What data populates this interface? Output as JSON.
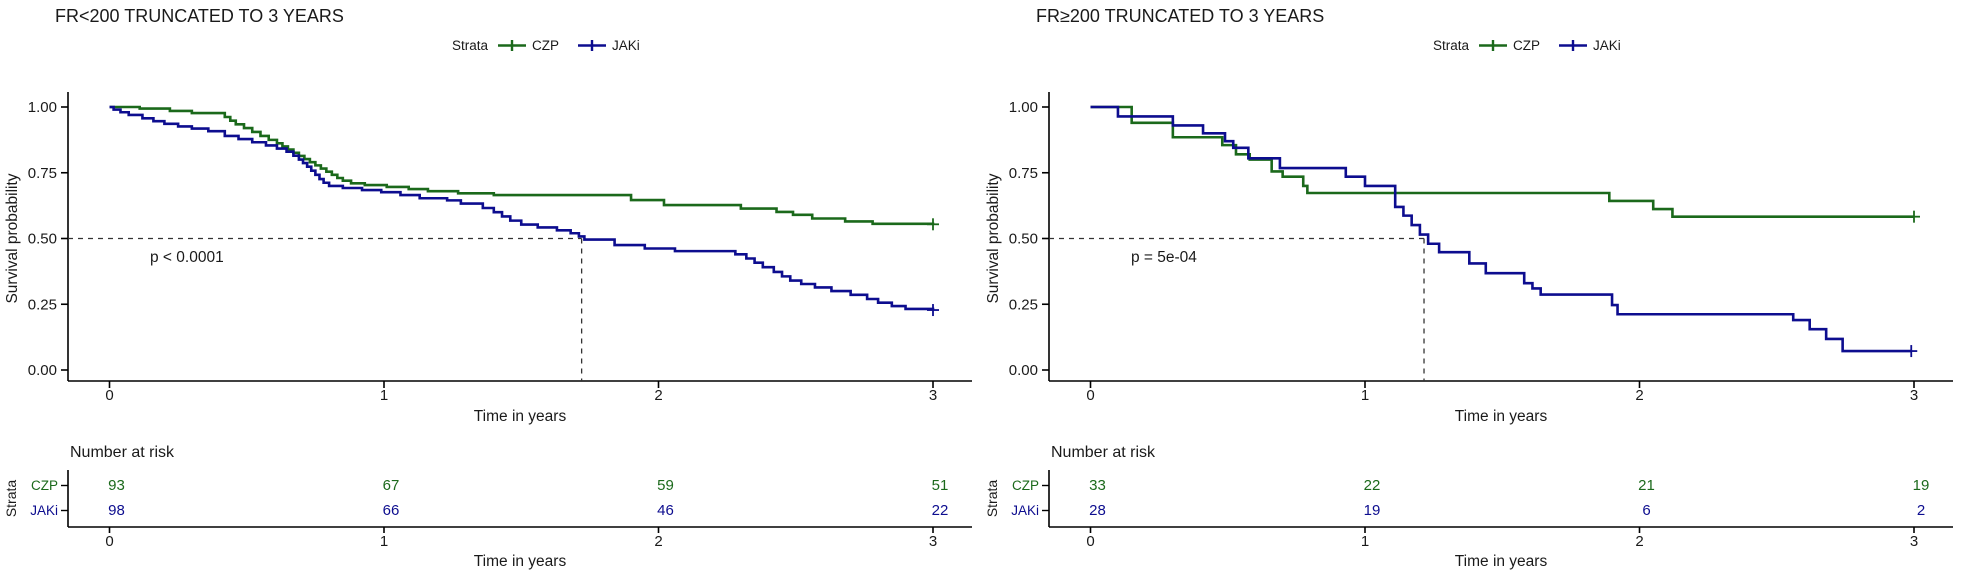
{
  "figure_type": "kaplan_meier_survival_pair",
  "colors": {
    "czp": "#1b691b",
    "jaki": "#0d0d8f",
    "axis": "#000000",
    "dashed": "#333333",
    "text": "#1a1a1a"
  },
  "chart_data": [
    {
      "type": "line",
      "subtype": "kaplan_meier_step",
      "title": "FR<200 TRUNCATED TO 3 YEARS",
      "legend": {
        "label": "Strata",
        "position": "top",
        "items": [
          {
            "name": "CZP",
            "color": "#1b691b"
          },
          {
            "name": "JAKi",
            "color": "#0d0d8f"
          }
        ]
      },
      "xlabel": "Time in years",
      "ylabel": "Survival probability",
      "xlim": [
        0,
        3
      ],
      "ylim": [
        0,
        1
      ],
      "grid": false,
      "xtick_vals": [
        0,
        1,
        2,
        3
      ],
      "xtick_labels": [
        "0",
        "1",
        "2",
        "3"
      ],
      "ytick_vals": [
        0,
        0.25,
        0.5,
        0.75,
        1
      ],
      "ytick_labels": [
        "0.00",
        "0.25",
        "0.50",
        "0.75",
        "1.00"
      ],
      "p_value": "p < 0.0001",
      "median_line": {
        "surv": 0.5,
        "time": 1.72
      },
      "series": [
        {
          "name": "CZP",
          "color": "#1b691b",
          "end": 3.0,
          "censors": [
            [
              3.0,
              0.554
            ]
          ],
          "points": [
            [
              0,
              1.0
            ],
            [
              0.11,
              0.994
            ],
            [
              0.22,
              0.985
            ],
            [
              0.3,
              0.977
            ],
            [
              0.42,
              0.962
            ],
            [
              0.44,
              0.948
            ],
            [
              0.46,
              0.934
            ],
            [
              0.49,
              0.92
            ],
            [
              0.52,
              0.905
            ],
            [
              0.55,
              0.89
            ],
            [
              0.58,
              0.875
            ],
            [
              0.61,
              0.862
            ],
            [
              0.63,
              0.85
            ],
            [
              0.65,
              0.838
            ],
            [
              0.67,
              0.826
            ],
            [
              0.69,
              0.814
            ],
            [
              0.71,
              0.802
            ],
            [
              0.73,
              0.79
            ],
            [
              0.75,
              0.778
            ],
            [
              0.77,
              0.766
            ],
            [
              0.79,
              0.754
            ],
            [
              0.81,
              0.742
            ],
            [
              0.83,
              0.73
            ],
            [
              0.85,
              0.72
            ],
            [
              0.88,
              0.71
            ],
            [
              0.93,
              0.703
            ],
            [
              1.01,
              0.696
            ],
            [
              1.09,
              0.688
            ],
            [
              1.16,
              0.68
            ],
            [
              1.27,
              0.672
            ],
            [
              1.4,
              0.665
            ],
            [
              1.9,
              0.646
            ],
            [
              2.02,
              0.627
            ],
            [
              2.3,
              0.614
            ],
            [
              2.43,
              0.601
            ],
            [
              2.49,
              0.59
            ],
            [
              2.56,
              0.576
            ],
            [
              2.68,
              0.565
            ],
            [
              2.78,
              0.556
            ],
            [
              3.0,
              0.554
            ]
          ]
        },
        {
          "name": "JAKi",
          "color": "#0d0d8f",
          "end": 3.0,
          "censors": [
            [
              3.0,
              0.228
            ]
          ],
          "points": [
            [
              0,
              1.0
            ],
            [
              0.015,
              0.99
            ],
            [
              0.04,
              0.98
            ],
            [
              0.07,
              0.97
            ],
            [
              0.12,
              0.957
            ],
            [
              0.16,
              0.946
            ],
            [
              0.2,
              0.936
            ],
            [
              0.25,
              0.926
            ],
            [
              0.3,
              0.918
            ],
            [
              0.36,
              0.908
            ],
            [
              0.42,
              0.89
            ],
            [
              0.47,
              0.878
            ],
            [
              0.52,
              0.866
            ],
            [
              0.57,
              0.854
            ],
            [
              0.61,
              0.842
            ],
            [
              0.645,
              0.83
            ],
            [
              0.67,
              0.815
            ],
            [
              0.69,
              0.8
            ],
            [
              0.705,
              0.787
            ],
            [
              0.72,
              0.773
            ],
            [
              0.735,
              0.758
            ],
            [
              0.75,
              0.742
            ],
            [
              0.765,
              0.726
            ],
            [
              0.78,
              0.712
            ],
            [
              0.8,
              0.7
            ],
            [
              0.85,
              0.692
            ],
            [
              0.92,
              0.684
            ],
            [
              0.99,
              0.676
            ],
            [
              1.06,
              0.665
            ],
            [
              1.13,
              0.653
            ],
            [
              1.23,
              0.645
            ],
            [
              1.28,
              0.633
            ],
            [
              1.36,
              0.616
            ],
            [
              1.4,
              0.6
            ],
            [
              1.43,
              0.584
            ],
            [
              1.46,
              0.568
            ],
            [
              1.5,
              0.553
            ],
            [
              1.56,
              0.542
            ],
            [
              1.63,
              0.531
            ],
            [
              1.68,
              0.52
            ],
            [
              1.71,
              0.508
            ],
            [
              1.73,
              0.496
            ],
            [
              1.84,
              0.475
            ],
            [
              1.95,
              0.462
            ],
            [
              2.06,
              0.452
            ],
            [
              2.28,
              0.44
            ],
            [
              2.32,
              0.424
            ],
            [
              2.35,
              0.408
            ],
            [
              2.38,
              0.391
            ],
            [
              2.42,
              0.373
            ],
            [
              2.45,
              0.356
            ],
            [
              2.48,
              0.34
            ],
            [
              2.52,
              0.327
            ],
            [
              2.57,
              0.314
            ],
            [
              2.63,
              0.3
            ],
            [
              2.7,
              0.286
            ],
            [
              2.76,
              0.27
            ],
            [
              2.8,
              0.256
            ],
            [
              2.85,
              0.243
            ],
            [
              2.9,
              0.232
            ],
            [
              3.0,
              0.228
            ]
          ]
        }
      ],
      "risk_table": {
        "title": "Number at risk",
        "strata_axis_label": "Strata",
        "xlabel": "Time in years",
        "xtick_labels": [
          "0",
          "1",
          "2",
          "3"
        ],
        "rows": [
          {
            "name": "CZP",
            "color": "#1b691b",
            "values": [
              "93",
              "67",
              "59",
              "51"
            ]
          },
          {
            "name": "JAKi",
            "color": "#0d0d8f",
            "values": [
              "98",
              "66",
              "46",
              "22"
            ]
          }
        ]
      }
    },
    {
      "type": "line",
      "subtype": "kaplan_meier_step",
      "title": "FR≥200 TRUNCATED TO 3 YEARS",
      "legend": {
        "label": "Strata",
        "position": "top",
        "items": [
          {
            "name": "CZP",
            "color": "#1b691b"
          },
          {
            "name": "JAKi",
            "color": "#0d0d8f"
          }
        ]
      },
      "xlabel": "Time in years",
      "ylabel": "Survival probability",
      "xlim": [
        0,
        3
      ],
      "ylim": [
        0,
        1
      ],
      "grid": false,
      "xtick_vals": [
        0,
        1,
        2,
        3
      ],
      "xtick_labels": [
        "0",
        "1",
        "2",
        "3"
      ],
      "ytick_vals": [
        0,
        0.25,
        0.5,
        0.75,
        1
      ],
      "ytick_labels": [
        "0.00",
        "0.25",
        "0.50",
        "0.75",
        "1.00"
      ],
      "p_value": "p = 5e-04",
      "median_line": {
        "surv": 0.5,
        "time": 1.215
      },
      "series": [
        {
          "name": "CZP",
          "color": "#1b691b",
          "end": 3.0,
          "censors": [
            [
              3.0,
              0.583
            ]
          ],
          "points": [
            [
              0,
              1.0
            ],
            [
              0.15,
              0.94
            ],
            [
              0.3,
              0.885
            ],
            [
              0.48,
              0.855
            ],
            [
              0.53,
              0.82
            ],
            [
              0.58,
              0.8
            ],
            [
              0.66,
              0.755
            ],
            [
              0.7,
              0.735
            ],
            [
              0.775,
              0.7
            ],
            [
              0.79,
              0.673
            ],
            [
              1.89,
              0.643
            ],
            [
              2.05,
              0.612
            ],
            [
              2.12,
              0.583
            ],
            [
              3.0,
              0.583
            ]
          ]
        },
        {
          "name": "JAKi",
          "color": "#0d0d8f",
          "end": 2.99,
          "censors": [
            [
              2.99,
              0.072
            ]
          ],
          "points": [
            [
              0,
              1.0
            ],
            [
              0.1,
              0.964
            ],
            [
              0.3,
              0.93
            ],
            [
              0.41,
              0.9
            ],
            [
              0.49,
              0.87
            ],
            [
              0.52,
              0.845
            ],
            [
              0.575,
              0.805
            ],
            [
              0.69,
              0.768
            ],
            [
              0.93,
              0.735
            ],
            [
              1.0,
              0.7
            ],
            [
              1.11,
              0.62
            ],
            [
              1.14,
              0.587
            ],
            [
              1.17,
              0.551
            ],
            [
              1.2,
              0.515
            ],
            [
              1.23,
              0.48
            ],
            [
              1.27,
              0.448
            ],
            [
              1.38,
              0.405
            ],
            [
              1.44,
              0.368
            ],
            [
              1.58,
              0.33
            ],
            [
              1.61,
              0.31
            ],
            [
              1.64,
              0.287
            ],
            [
              1.9,
              0.247
            ],
            [
              1.92,
              0.212
            ],
            [
              2.56,
              0.19
            ],
            [
              2.62,
              0.155
            ],
            [
              2.68,
              0.118
            ],
            [
              2.74,
              0.072
            ],
            [
              2.99,
              0.072
            ]
          ]
        }
      ],
      "risk_table": {
        "title": "Number at risk",
        "strata_axis_label": "Strata",
        "xlabel": "Time in years",
        "xtick_labels": [
          "0",
          "1",
          "2",
          "3"
        ],
        "rows": [
          {
            "name": "CZP",
            "color": "#1b691b",
            "values": [
              "33",
              "22",
              "21",
              "19"
            ]
          },
          {
            "name": "JAKi",
            "color": "#0d0d8f",
            "values": [
              "28",
              "19",
              "6",
              "2"
            ]
          }
        ]
      }
    }
  ]
}
